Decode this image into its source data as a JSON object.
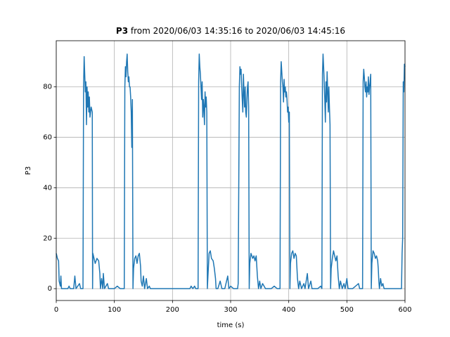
{
  "chart_data": {
    "type": "line",
    "title": [
      "P3",
      "from 2020/06/03 14:35:16 to 2020/06/03 14:45:16"
    ],
    "xlabel": "time (s)",
    "ylabel": "P3",
    "color": "#1f77b4",
    "grid": true,
    "xlim": [
      0,
      600
    ],
    "xticks": [
      0,
      100,
      200,
      300,
      400,
      500,
      600
    ],
    "ylim": [
      -4.7,
      98.3
    ],
    "yticks": [
      0,
      20,
      40,
      60,
      80
    ],
    "x": [
      0,
      2,
      4,
      5,
      7,
      8,
      9,
      20,
      22,
      24,
      30,
      32,
      34,
      40,
      42,
      46,
      47,
      48,
      49,
      50,
      51,
      52,
      53,
      54,
      55,
      56,
      57,
      58,
      60,
      62,
      62.5,
      63,
      65,
      67,
      70,
      73,
      75,
      76,
      78,
      80,
      81,
      83,
      88,
      90,
      100,
      105,
      110,
      117,
      118,
      119,
      120,
      121,
      122,
      123,
      124,
      125,
      126,
      127,
      128,
      129,
      130,
      131,
      132,
      133,
      135,
      137,
      139,
      141,
      143,
      145,
      146,
      148,
      150,
      152,
      155,
      157,
      160,
      162,
      200,
      230,
      232,
      235,
      238,
      240,
      244,
      245,
      246,
      247,
      248,
      249,
      250,
      251,
      252,
      253,
      254,
      255,
      256,
      257,
      258,
      259,
      260,
      261,
      263,
      265,
      267,
      270,
      272,
      274,
      275,
      278,
      282,
      285,
      290,
      295,
      297,
      300,
      305,
      312,
      313,
      315,
      316,
      317,
      318,
      319,
      320,
      321,
      322,
      323,
      324,
      325,
      326,
      327,
      328,
      329,
      330,
      331,
      332,
      333,
      335,
      338,
      340,
      342,
      344,
      346,
      348,
      350,
      352,
      355,
      360,
      370,
      375,
      380,
      385,
      386,
      387,
      388,
      389,
      390,
      391,
      392,
      393,
      394,
      395,
      396,
      397,
      398,
      399,
      400,
      401,
      402,
      403,
      405,
      407,
      409,
      411,
      413,
      415,
      417,
      419,
      422,
      426,
      428,
      432,
      434,
      438,
      440,
      450,
      455,
      457,
      458,
      459,
      460,
      461,
      462,
      463,
      464,
      465,
      466,
      467,
      468,
      469,
      470,
      471,
      472,
      473,
      475,
      477,
      479,
      481,
      483,
      485,
      487,
      489,
      492,
      495,
      497,
      500,
      502,
      510,
      520,
      522,
      527,
      528,
      529,
      530,
      531,
      532,
      533,
      534,
      535,
      536,
      537,
      538,
      539,
      540,
      541,
      542,
      543,
      545,
      547,
      549,
      551,
      553,
      554,
      555,
      556,
      558,
      560,
      562,
      564,
      570,
      594,
      595,
      596,
      597,
      598,
      599,
      600
    ],
    "values": [
      14,
      12,
      11,
      3,
      1,
      5,
      0,
      0,
      1,
      0,
      0,
      5,
      0,
      2,
      0,
      0,
      80,
      92,
      85,
      78,
      82,
      65,
      80,
      72,
      78,
      70,
      76,
      68,
      72,
      70,
      0,
      14,
      12,
      10,
      12,
      11,
      6,
      0,
      4,
      0,
      6,
      0,
      2,
      0,
      0,
      1,
      0,
      0,
      80,
      88,
      84,
      90,
      93,
      86,
      82,
      84,
      80,
      80,
      76,
      70,
      56,
      75,
      0,
      8,
      12,
      13,
      10,
      13,
      14,
      9,
      3,
      1,
      5,
      0,
      4,
      0,
      1,
      0,
      0,
      0,
      1,
      0,
      1,
      0,
      0,
      82,
      93,
      88,
      85,
      80,
      75,
      82,
      68,
      75,
      72,
      65,
      78,
      72,
      76,
      70,
      0,
      5,
      14,
      15,
      12,
      11,
      8,
      4,
      0,
      0,
      3,
      0,
      0,
      5,
      0,
      1,
      0,
      0,
      2,
      80,
      88,
      85,
      87,
      80,
      75,
      70,
      85,
      78,
      72,
      80,
      70,
      68,
      75,
      80,
      82,
      72,
      0,
      10,
      14,
      12,
      13,
      11,
      13,
      5,
      0,
      3,
      0,
      2,
      0,
      0,
      1,
      0,
      0,
      82,
      90,
      86,
      82,
      80,
      74,
      83,
      78,
      80,
      76,
      78,
      75,
      70,
      72,
      66,
      70,
      0,
      10,
      14,
      15,
      12,
      14,
      13,
      4,
      0,
      3,
      0,
      2,
      0,
      6,
      0,
      3,
      0,
      0,
      1,
      0,
      85,
      93,
      88,
      82,
      75,
      66,
      82,
      74,
      86,
      78,
      70,
      80,
      72,
      65,
      0,
      8,
      12,
      15,
      13,
      11,
      13,
      5,
      0,
      3,
      0,
      2,
      0,
      4,
      0,
      0,
      2,
      0,
      0,
      82,
      87,
      84,
      80,
      78,
      82,
      76,
      80,
      78,
      84,
      77,
      80,
      82,
      85,
      0,
      10,
      15,
      14,
      12,
      13,
      11,
      8,
      3,
      0,
      4,
      1,
      2,
      0,
      0,
      0,
      14,
      20,
      82,
      78,
      89,
      88
    ]
  }
}
